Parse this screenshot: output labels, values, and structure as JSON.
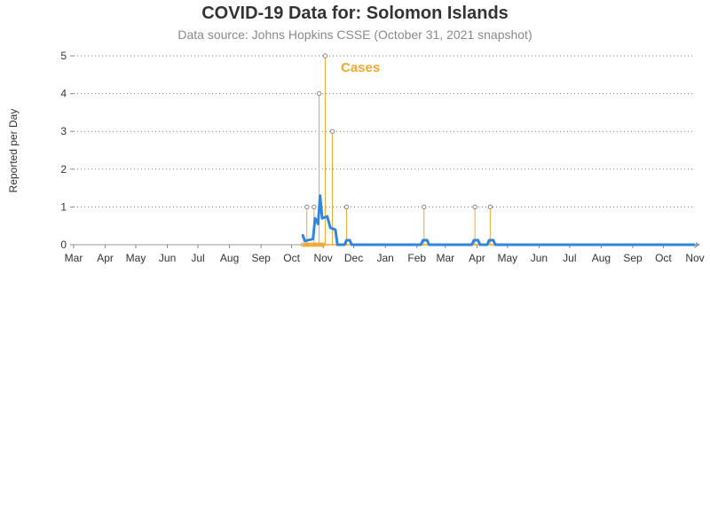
{
  "chart_data": {
    "type": "line",
    "title": "COVID-19 Data for: Solomon Islands",
    "subtitle": "Data source: Johns Hopkins CSSE (October 31, 2021 snapshot)",
    "ylabel": "Reported per Day",
    "xlabel": "",
    "x_range": [
      "2020-03-01",
      "2021-11-01"
    ],
    "ylim": [
      0,
      5
    ],
    "yticks": [
      0,
      1,
      2,
      3,
      4,
      5
    ],
    "x_tick_labels": [
      {
        "date": "2020-03-01",
        "label": "Mar"
      },
      {
        "date": "2020-04-01",
        "label": "Apr"
      },
      {
        "date": "2020-05-01",
        "label": "May"
      },
      {
        "date": "2020-06-01",
        "label": "Jun"
      },
      {
        "date": "2020-07-01",
        "label": "Jul"
      },
      {
        "date": "2020-08-01",
        "label": "Aug"
      },
      {
        "date": "2020-09-01",
        "label": "Sep"
      },
      {
        "date": "2020-10-01",
        "label": "Oct"
      },
      {
        "date": "2020-11-01",
        "label": "Nov"
      },
      {
        "date": "2020-12-01",
        "label": "Dec"
      },
      {
        "date": "2021-01-01",
        "label": "Jan"
      },
      {
        "date": "2021-02-01",
        "label": "Feb"
      },
      {
        "date": "2021-03-01",
        "label": "Mar"
      },
      {
        "date": "2021-04-01",
        "label": "Apr"
      },
      {
        "date": "2021-05-01",
        "label": "May"
      },
      {
        "date": "2021-06-01",
        "label": "Jun"
      },
      {
        "date": "2021-07-01",
        "label": "Jul"
      },
      {
        "date": "2021-08-01",
        "label": "Aug"
      },
      {
        "date": "2021-09-01",
        "label": "Sep"
      },
      {
        "date": "2021-10-01",
        "label": "Oct"
      },
      {
        "date": "2021-11-01",
        "label": "Nov"
      }
    ],
    "grid": {
      "horizontal": true,
      "style": "dotted"
    },
    "series": [
      {
        "name": "Cases",
        "kind": "needle",
        "color": "#f0a830",
        "data_range": [
          "2020-10-12",
          "2021-10-31"
        ],
        "points": [
          {
            "date": "2020-10-16",
            "value": 1
          },
          {
            "date": "2020-10-23",
            "value": 1
          },
          {
            "date": "2020-10-28",
            "value": 4
          },
          {
            "date": "2020-11-03",
            "value": 5
          },
          {
            "date": "2020-11-10",
            "value": 3
          },
          {
            "date": "2020-11-24",
            "value": 1
          },
          {
            "date": "2021-02-08",
            "value": 1
          },
          {
            "date": "2021-03-30",
            "value": 1
          },
          {
            "date": "2021-04-14",
            "value": 1
          }
        ]
      },
      {
        "name": "",
        "kind": "line",
        "color": "#2e86de",
        "points": [
          {
            "date": "2020-10-12",
            "value": 0.25
          },
          {
            "date": "2020-10-14",
            "value": 0.1
          },
          {
            "date": "2020-10-22",
            "value": 0.15
          },
          {
            "date": "2020-10-24",
            "value": 0.7
          },
          {
            "date": "2020-10-27",
            "value": 0.55
          },
          {
            "date": "2020-10-29",
            "value": 1.3
          },
          {
            "date": "2020-10-31",
            "value": 0.7
          },
          {
            "date": "2020-11-05",
            "value": 0.75
          },
          {
            "date": "2020-11-08",
            "value": 0.45
          },
          {
            "date": "2020-11-13",
            "value": 0.4
          },
          {
            "date": "2020-11-15",
            "value": 0.0
          },
          {
            "date": "2020-11-22",
            "value": 0.0
          },
          {
            "date": "2020-11-24",
            "value": 0.12
          },
          {
            "date": "2020-11-27",
            "value": 0.12
          },
          {
            "date": "2020-11-29",
            "value": 0.0
          },
          {
            "date": "2021-02-05",
            "value": 0.0
          },
          {
            "date": "2021-02-07",
            "value": 0.12
          },
          {
            "date": "2021-02-11",
            "value": 0.12
          },
          {
            "date": "2021-02-13",
            "value": 0.0
          },
          {
            "date": "2021-03-27",
            "value": 0.0
          },
          {
            "date": "2021-03-29",
            "value": 0.12
          },
          {
            "date": "2021-04-02",
            "value": 0.12
          },
          {
            "date": "2021-04-04",
            "value": 0.0
          },
          {
            "date": "2021-04-11",
            "value": 0.0
          },
          {
            "date": "2021-04-13",
            "value": 0.12
          },
          {
            "date": "2021-04-17",
            "value": 0.12
          },
          {
            "date": "2021-04-19",
            "value": 0.0
          },
          {
            "date": "2021-10-31",
            "value": 0.0
          }
        ]
      }
    ]
  }
}
